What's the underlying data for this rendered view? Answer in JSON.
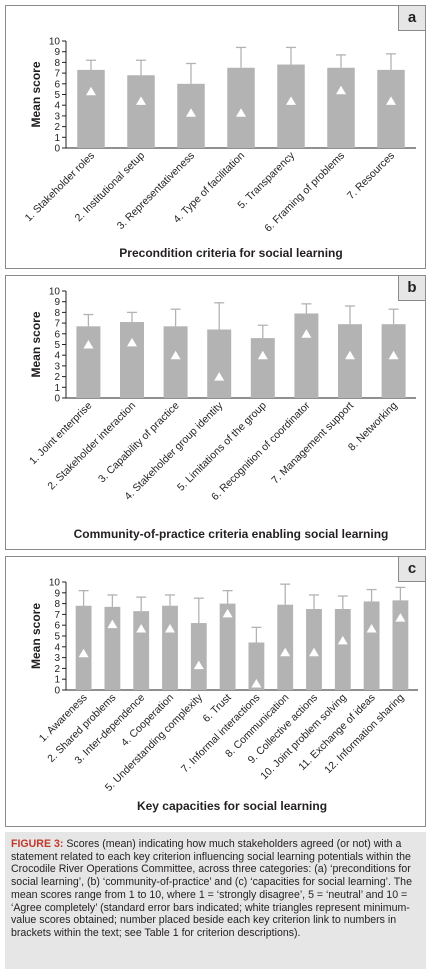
{
  "chart_data": [
    {
      "type": "bar",
      "panel_label": "a",
      "title": "Precondition criteria for social learning",
      "ylabel": "Mean score",
      "ylim": [
        0,
        10
      ],
      "yticks": [
        0,
        1,
        2,
        3,
        4,
        5,
        6,
        7,
        8,
        9,
        10
      ],
      "categories": [
        "1. Stakeholder roles",
        "2. Institutional setup",
        "3. Representativeness",
        "4. Type of facilitation",
        "5. Transparency",
        "6. Framing of problems",
        "7. Resources"
      ],
      "values": [
        7.3,
        6.8,
        6.0,
        7.5,
        7.8,
        7.5,
        7.3
      ],
      "error_upper": [
        8.2,
        8.2,
        7.9,
        9.4,
        9.4,
        8.7,
        8.8
      ],
      "min_values": [
        5.3,
        4.4,
        3.3,
        3.3,
        4.4,
        5.4,
        4.4
      ]
    },
    {
      "type": "bar",
      "panel_label": "b",
      "title": "Community-of-practice criteria enabling social learning",
      "ylabel": "Mean score",
      "ylim": [
        0,
        10
      ],
      "yticks": [
        0,
        1,
        2,
        3,
        4,
        5,
        6,
        7,
        8,
        9,
        10
      ],
      "categories": [
        "1. Joint enterprise",
        "2. Stakeholder interaction",
        "3. Capability of practice",
        "4. Stakeholder group identity",
        "5. Limitations of the group",
        "6. Recognition of coordinator",
        "7. Management support",
        "8. Networking"
      ],
      "values": [
        6.7,
        7.1,
        6.7,
        6.4,
        5.6,
        7.9,
        6.9,
        6.9
      ],
      "error_upper": [
        7.8,
        8.0,
        8.3,
        8.9,
        6.8,
        8.8,
        8.6,
        8.3
      ],
      "min_values": [
        5.0,
        5.2,
        4.0,
        2.0,
        4.0,
        6.0,
        4.0,
        4.0
      ]
    },
    {
      "type": "bar",
      "panel_label": "c",
      "title": "Key capacities for social learning",
      "ylabel": "Mean score",
      "ylim": [
        0,
        10
      ],
      "yticks": [
        0,
        1,
        2,
        3,
        4,
        5,
        6,
        7,
        8,
        9,
        10
      ],
      "categories": [
        "1. Awareness",
        "2. Shared problems",
        "3. Inter-dependence",
        "4. Cooperation",
        "5. Understanding complexity",
        "6. Trust",
        "7. Informal interactions",
        "8. Communication",
        "9. Collective actions",
        "10. Joint problem solving",
        "11. Exchange of ideas",
        "12. Information sharing"
      ],
      "values": [
        7.8,
        7.7,
        7.3,
        7.8,
        6.2,
        8.0,
        4.4,
        7.9,
        7.5,
        7.5,
        8.2,
        8.3
      ],
      "error_upper": [
        9.2,
        8.8,
        8.6,
        8.8,
        8.5,
        9.2,
        5.8,
        9.8,
        8.8,
        8.7,
        9.3,
        9.5
      ],
      "min_values": [
        3.4,
        6.1,
        5.7,
        5.7,
        2.3,
        7.1,
        0.6,
        3.5,
        3.5,
        4.6,
        5.7,
        6.7
      ]
    }
  ],
  "caption": {
    "figure_label": "FIGURE 3:",
    "text": " Scores (mean) indicating how much stakeholders agreed (or not) with a statement related to each key criterion influencing social learning potentials within the Crocodile River Operations Committee, across three categories: (a) ‘preconditions for social learning’, (b) ‘community-of-practice’ and (c) ‘capacities for social learning’. The mean scores range from 1 to 10, where 1 = ‘strongly disagree’, 5 = ‘neutral’ and 10 = ‘Agree completely’ (standard error bars indicated; white triangles represent minimum-value scores obtained; number placed beside each key criterion link to numbers in brackets within the text; see Table 1 for criterion descriptions)."
  },
  "colors": {
    "bar": "#b3b3b3",
    "error_bar": "#b3b3b3",
    "triangle": "#ffffff",
    "axis": "#231f20",
    "caption_bg": "#e6e6e6",
    "figure_label": "#c0392b"
  }
}
